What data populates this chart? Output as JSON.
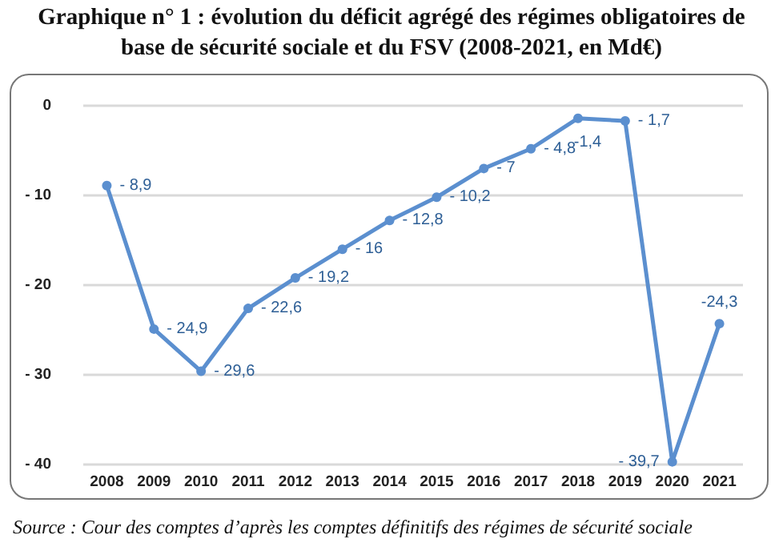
{
  "chart_data": {
    "type": "line",
    "title": "Graphique n° 1 : évolution du déficit agrégé des régimes obligatoires de base de sécurité sociale et du FSV (2008-2021, en Md€)",
    "categories": [
      "2008",
      "2009",
      "2010",
      "2011",
      "2012",
      "2013",
      "2014",
      "2015",
      "2016",
      "2017",
      "2018",
      "2019",
      "2020",
      "2021"
    ],
    "series": [
      {
        "color": "#5b8fcf",
        "values": [
          -8.9,
          -24.9,
          -29.6,
          -22.6,
          -19.2,
          -16,
          -12.8,
          -10.2,
          -7,
          -4.8,
          -1.4,
          -1.7,
          -39.7,
          -24.3
        ],
        "value_labels": [
          "- 8,9",
          "- 24,9",
          "- 29,6",
          "- 22,6",
          "- 19,2",
          "- 16",
          "- 12,8",
          "- 10,2",
          "- 7",
          "- 4,8",
          "-1,4",
          "- 1,7",
          "- 39,7",
          "-24,3"
        ]
      }
    ],
    "ylim": [
      -40,
      0
    ],
    "yticks": [
      0,
      {
        "value": -10,
        "label": "- 10"
      },
      {
        "value": -20,
        "label": "- 20"
      },
      {
        "value": -30,
        "label": "- 30"
      },
      {
        "value": -40,
        "label": "- 40"
      }
    ],
    "grid": "y",
    "marker": "circle",
    "line_style": "solid",
    "annotations": [
      "Source : Cour des comptes d’après les comptes définitifs des régimes de sécurité sociale"
    ]
  }
}
